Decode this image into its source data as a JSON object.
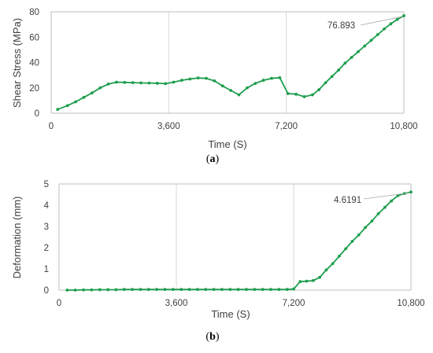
{
  "colors": {
    "series": "#1e9e4e",
    "grid": "#d9d9d9",
    "axis": "#bfbfbf",
    "text": "#404040"
  },
  "chart_data": [
    {
      "type": "line",
      "panel_label": {
        "open": "(",
        "letter": "a",
        "close": ")"
      },
      "xlabel": "Time (S)",
      "ylabel": "Shear Stress (MPa)",
      "xlim": [
        0,
        10800
      ],
      "ylim": [
        0,
        80
      ],
      "xticks": [
        0,
        3600,
        7200,
        10800
      ],
      "xtick_labels": [
        "0",
        "3,600",
        "7,200",
        "10,800"
      ],
      "yticks": [
        0,
        20,
        40,
        60,
        80
      ],
      "ytick_labels": [
        "0",
        "20",
        "40",
        "60",
        "80"
      ],
      "vgrid": [
        3600,
        7200
      ],
      "grid": true,
      "annotation": {
        "text": "76.893",
        "x": 10800,
        "y": 76.893
      },
      "series": [
        {
          "x": [
            200,
            500,
            750,
            1000,
            1250,
            1500,
            1750,
            2000,
            2250,
            2500,
            2750,
            3000,
            3250,
            3500,
            3750,
            4000,
            4250,
            4500,
            4750,
            5000,
            5250,
            5500,
            5750,
            6000,
            6250,
            6500,
            6750,
            7000,
            7250,
            7500,
            7750,
            8000,
            8200,
            8400,
            8600,
            8800,
            9000,
            9200,
            9400,
            9600,
            9800,
            10000,
            10200,
            10400,
            10600,
            10800
          ],
          "y": [
            3,
            6,
            9,
            12.5,
            16,
            20,
            23,
            24.5,
            24.3,
            24.1,
            23.9,
            23.8,
            23.6,
            23.3,
            24.5,
            26,
            27,
            27.8,
            27.5,
            25.5,
            21.5,
            18,
            14.5,
            20,
            23.5,
            26,
            27.5,
            28,
            15.5,
            15,
            13,
            14.5,
            18.5,
            24,
            29,
            34,
            39.5,
            44,
            48.5,
            53,
            57.5,
            62,
            66.5,
            70.5,
            74,
            76.893
          ]
        }
      ]
    },
    {
      "type": "line",
      "panel_label": {
        "open": "(",
        "letter": "b",
        "close": ")"
      },
      "xlabel": "Time (S)",
      "ylabel": "Deformation (mm)",
      "xlim": [
        0,
        10800
      ],
      "ylim": [
        0,
        5
      ],
      "xticks": [
        0,
        3600,
        7200,
        10800
      ],
      "xtick_labels": [
        "0",
        "3,600",
        "7,200",
        "10,800"
      ],
      "yticks": [
        0,
        1,
        2,
        3,
        4,
        5
      ],
      "ytick_labels": [
        "0",
        "1",
        "2",
        "3",
        "4",
        "5"
      ],
      "vgrid": [
        3600,
        7200
      ],
      "grid": true,
      "annotation": {
        "text": "4.6191",
        "x": 10800,
        "y": 4.6191
      },
      "series": [
        {
          "x": [
            250,
            500,
            750,
            1000,
            1250,
            1500,
            1750,
            2000,
            2250,
            2500,
            2750,
            3000,
            3250,
            3500,
            3750,
            4000,
            4250,
            4500,
            4750,
            5000,
            5250,
            5500,
            5750,
            6000,
            6250,
            6500,
            6750,
            7000,
            7200,
            7400,
            7600,
            7800,
            8000,
            8200,
            8400,
            8600,
            8800,
            9000,
            9200,
            9400,
            9600,
            9800,
            10000,
            10200,
            10400,
            10600,
            10800
          ],
          "y": [
            0,
            0,
            0.01,
            0.01,
            0.02,
            0.02,
            0.02,
            0.03,
            0.03,
            0.03,
            0.03,
            0.03,
            0.03,
            0.03,
            0.03,
            0.03,
            0.03,
            0.03,
            0.03,
            0.03,
            0.03,
            0.03,
            0.03,
            0.03,
            0.03,
            0.03,
            0.03,
            0.03,
            0.05,
            0.4,
            0.42,
            0.45,
            0.6,
            0.95,
            1.25,
            1.6,
            1.95,
            2.3,
            2.6,
            2.95,
            3.25,
            3.6,
            3.9,
            4.2,
            4.45,
            4.55,
            4.6191
          ]
        }
      ]
    }
  ]
}
